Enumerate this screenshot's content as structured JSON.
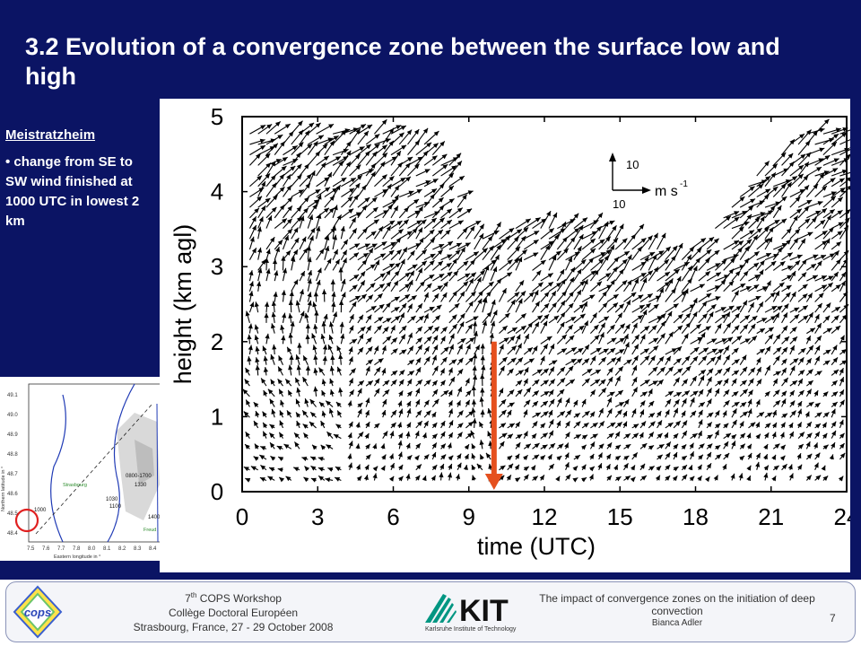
{
  "slide": {
    "title": "3.2 Evolution of a convergence zone between the surface low and high"
  },
  "sidebar": {
    "heading": "Meistratzheim",
    "bullet": "• change from SE to SW wind finished at 1000 UTC in lowest 2 km"
  },
  "map": {
    "y_ticks": [
      "49.1",
      "49.0",
      "48.9",
      "48.8",
      "48.7",
      "48.6",
      "48.5",
      "48.4"
    ],
    "x_ticks": [
      "7.5",
      "7.6",
      "7.7",
      "7.8",
      "8.0",
      "8.1",
      "8.2",
      "8.3",
      "8.4"
    ],
    "ylabel": "Northern latitude in °",
    "xlabel": "Eastern longitude in °",
    "time_labels": [
      "1000",
      "1030",
      "1100",
      "1330",
      "1400",
      "0800-1700"
    ],
    "place_labels": [
      "Strasbourg",
      "Freud"
    ]
  },
  "chart_data": {
    "type": "quiver",
    "ylabel": "height (km agl)",
    "xlabel": "time (UTC)",
    "x_ticks": [
      "0",
      "3",
      "6",
      "9",
      "12",
      "15",
      "18",
      "21",
      "24"
    ],
    "y_ticks": [
      "0",
      "1",
      "2",
      "3",
      "4",
      "5"
    ],
    "xlim": [
      0,
      24
    ],
    "ylim": [
      0,
      5
    ],
    "reference_arrow": {
      "value_x": "10",
      "value_y": "10",
      "unit": "m s",
      "unit_exp": "-1"
    },
    "marker": {
      "time_utc": 10,
      "height_from": 0,
      "height_to": 2,
      "color": "#e5501e"
    },
    "top_height_profile": [
      [
        0.3,
        4.9
      ],
      [
        2,
        4.85
      ],
      [
        4,
        4.9
      ],
      [
        6,
        4.8
      ],
      [
        8,
        4.55
      ],
      [
        9.3,
        3.4
      ],
      [
        10,
        3.45
      ],
      [
        11.5,
        3.6
      ],
      [
        13,
        3.6
      ],
      [
        15,
        3.5
      ],
      [
        16.8,
        3.2
      ],
      [
        17.5,
        3.15
      ],
      [
        18.5,
        3.5
      ],
      [
        20,
        4.1
      ],
      [
        22,
        4.75
      ],
      [
        23.7,
        4.85
      ]
    ],
    "segments": [
      {
        "t_from": 0,
        "t_to": 4,
        "lower_dir_deg": 100,
        "upper_dir_deg": 240
      },
      {
        "t_from": 4,
        "t_to": 9,
        "lower_dir_deg": 200,
        "upper_dir_deg": 235
      },
      {
        "t_from": 9,
        "t_to": 10,
        "lower_dir_deg": 135,
        "upper_dir_deg": 230
      },
      {
        "t_from": 10,
        "t_to": 18,
        "lower_dir_deg": 220,
        "upper_dir_deg": 225
      },
      {
        "t_from": 18,
        "t_to": 24,
        "lower_dir_deg": 210,
        "upper_dir_deg": 235
      }
    ]
  },
  "footer": {
    "workshop_prefix": "7",
    "workshop_sup": "th",
    "workshop_suffix": " COPS Workshop",
    "college": "Collège Doctoral Européen",
    "place": "Strasbourg, France, 27 - 29 October 2008",
    "kit_logo_text": "KIT",
    "kit_subtitle": "Karlsruhe Institute of Technology",
    "talk_title": "The impact of convergence zones on the initiation of deep convection",
    "author": "Bianca Adler",
    "page_number": "7",
    "cops_logo_text": "cops"
  }
}
